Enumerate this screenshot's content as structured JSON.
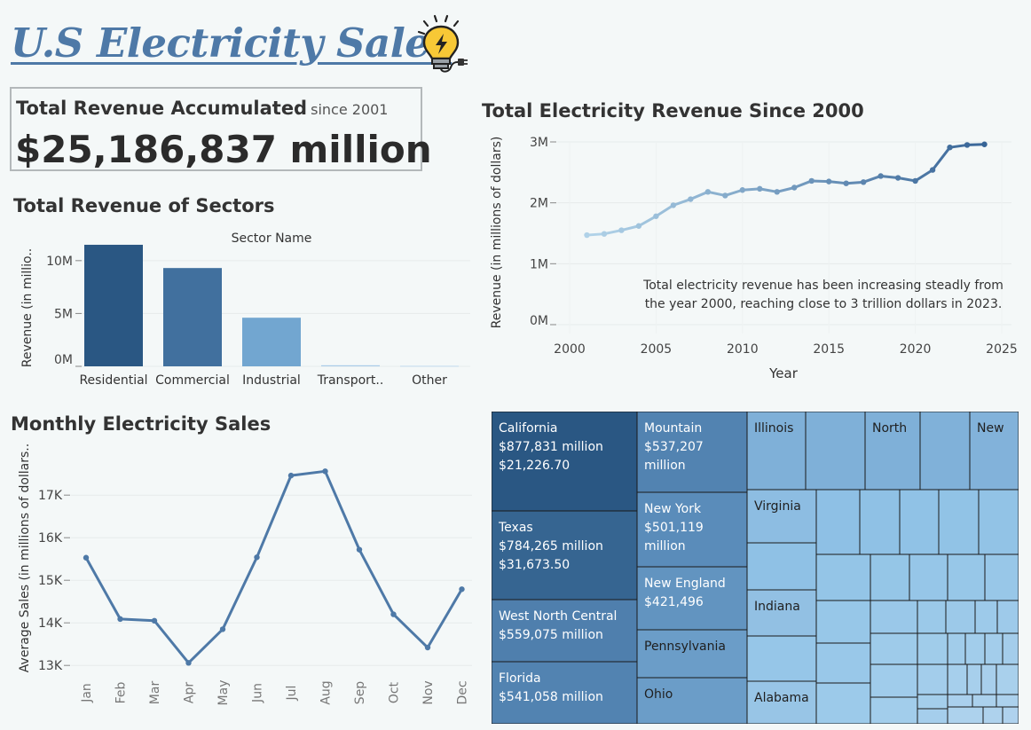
{
  "header": {
    "title": "U.S Electricity Sales",
    "icon": "lightbulb-plug-icon"
  },
  "kpi": {
    "heading": "Total Revenue Accumulated",
    "since": "since 2001",
    "value": "$25,186,837 million"
  },
  "colors": {
    "background": "#f4f8f8",
    "title_blue": "#4e79a7",
    "line_blue": "#4e79a7",
    "dark_blue": "#2a5783",
    "light_blue": "#9ac8e6"
  },
  "chart_data": [
    {
      "id": "sector-bar",
      "type": "bar",
      "title": "Total Revenue of Sectors",
      "legend_title": "Sector Name",
      "ylabel": "Revenue (in millio..",
      "categories": [
        "Residential",
        "Commercial",
        "Industrial",
        "Transport..",
        "Other"
      ],
      "values": [
        11500000,
        9300000,
        4600000,
        100000,
        50000
      ],
      "colors": [
        "#2a5783",
        "#41709e",
        "#72a6d0",
        "#a9cbe8",
        "#c2d9ee"
      ],
      "yticks": [
        "0M",
        "5M",
        "10M"
      ],
      "ylim": [
        0,
        12000000
      ]
    },
    {
      "id": "annual-revenue-line",
      "type": "line",
      "title": "Total Electricity Revenue Since 2000",
      "xlabel": "Year",
      "ylabel": "Revenue (in millions of dollars)",
      "x": [
        2001,
        2002,
        2003,
        2004,
        2005,
        2006,
        2007,
        2008,
        2009,
        2010,
        2011,
        2012,
        2013,
        2014,
        2015,
        2016,
        2017,
        2018,
        2019,
        2020,
        2021,
        2022,
        2023,
        2024
      ],
      "y": [
        1470000,
        1490000,
        1550000,
        1620000,
        1780000,
        1960000,
        2060000,
        2180000,
        2120000,
        2210000,
        2230000,
        2180000,
        2250000,
        2360000,
        2350000,
        2320000,
        2340000,
        2440000,
        2410000,
        2360000,
        2540000,
        2910000,
        2950000,
        2960000
      ],
      "xticks": [
        "2000",
        "2005",
        "2010",
        "2015",
        "2020",
        "2025"
      ],
      "yticks": [
        "0M",
        "1M",
        "2M",
        "3M"
      ],
      "xlim": [
        2000,
        2025
      ],
      "ylim": [
        0,
        3000000
      ],
      "annotation": "Total electricity revenue has been increasing steadly from\nthe year 2000, reaching close to 3 trillion dollars in 2023."
    },
    {
      "id": "monthly-sales-line",
      "type": "line",
      "title": "Monthly Electricity Sales",
      "ylabel": "Average Sales (in millions of dollars..",
      "categories": [
        "Jan",
        "Feb",
        "Mar",
        "Apr",
        "May",
        "Jun",
        "Jul",
        "Aug",
        "Sep",
        "Oct",
        "Nov",
        "Dec"
      ],
      "values": [
        15530,
        14090,
        14050,
        13060,
        13850,
        15540,
        17460,
        17560,
        15720,
        14200,
        13420,
        14790
      ],
      "yticks": [
        "13K",
        "14K",
        "15K",
        "16K",
        "17K"
      ],
      "ylim": [
        12900,
        17900
      ]
    },
    {
      "id": "state-treemap",
      "type": "treemap",
      "cells": [
        {
          "name": "California",
          "lines": [
            "California",
            "$877,831 million",
            "$21,226.70"
          ],
          "value": 877831,
          "color": "#2a5783"
        },
        {
          "name": "Texas",
          "lines": [
            "Texas",
            "$784,265 million",
            "$31,673.50"
          ],
          "value": 784265,
          "color": "#366591"
        },
        {
          "name": "West North Central",
          "lines": [
            "West North Central",
            "$559,075 million"
          ],
          "value": 559075,
          "color": "#4f7fad"
        },
        {
          "name": "Florida",
          "lines": [
            "Florida",
            "$541,058 million"
          ],
          "value": 541058,
          "color": "#5283b1"
        },
        {
          "name": "Mountain",
          "lines": [
            "Mountain",
            "$537,207",
            "million"
          ],
          "value": 537207,
          "color": "#5283b1"
        },
        {
          "name": "New York",
          "lines": [
            "New York",
            "$501,119",
            "million"
          ],
          "value": 501119,
          "color": "#5a8cba"
        },
        {
          "name": "New England",
          "lines": [
            "New England",
            "$421,496"
          ],
          "value": 421496,
          "color": "#6294c0"
        },
        {
          "name": "Pennsylvania",
          "lines": [
            "Pennsylvania"
          ],
          "value": 0,
          "color": "#6b9dc8"
        },
        {
          "name": "Ohio",
          "lines": [
            "Ohio"
          ],
          "value": 0,
          "color": "#6b9dc8"
        },
        {
          "name": "Illinois",
          "lines": [
            "Illinois"
          ],
          "value": 0,
          "color": "#7fb0d8"
        },
        {
          "name": "North",
          "lines": [
            "North"
          ],
          "value": 0,
          "color": "#7fb0d8"
        },
        {
          "name": "New",
          "lines": [
            "New"
          ],
          "value": 0,
          "color": "#82b2da"
        },
        {
          "name": "Virginia",
          "lines": [
            "Virginia"
          ],
          "value": 0,
          "color": "#8dbde2"
        },
        {
          "name": "Indiana",
          "lines": [
            "Indiana"
          ],
          "value": 0,
          "color": "#92c0e3"
        },
        {
          "name": "Alabama",
          "lines": [
            "Alabama"
          ],
          "value": 0,
          "color": "#98c5e6"
        }
      ]
    }
  ]
}
